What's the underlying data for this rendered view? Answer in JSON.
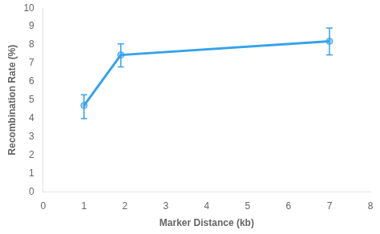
{
  "chart_data": {
    "type": "line",
    "xlabel": "Marker Distance (kb)",
    "ylabel": "Recombination Rate (%)",
    "x": [
      1,
      1.9,
      7
    ],
    "values": [
      4.7,
      7.45,
      8.2
    ],
    "yerr_lower": [
      0.72,
      0.65,
      0.75
    ],
    "yerr_upper": [
      0.58,
      0.6,
      0.72
    ],
    "xlim": [
      0,
      8
    ],
    "ylim": [
      0,
      10
    ],
    "xticks": [
      0,
      1,
      2,
      3,
      4,
      5,
      6,
      7,
      8
    ],
    "yticks": [
      0,
      1,
      2,
      3,
      4,
      5,
      6,
      7,
      8,
      9,
      10
    ],
    "marker": "circle",
    "line_style": "solid",
    "grid": false
  }
}
